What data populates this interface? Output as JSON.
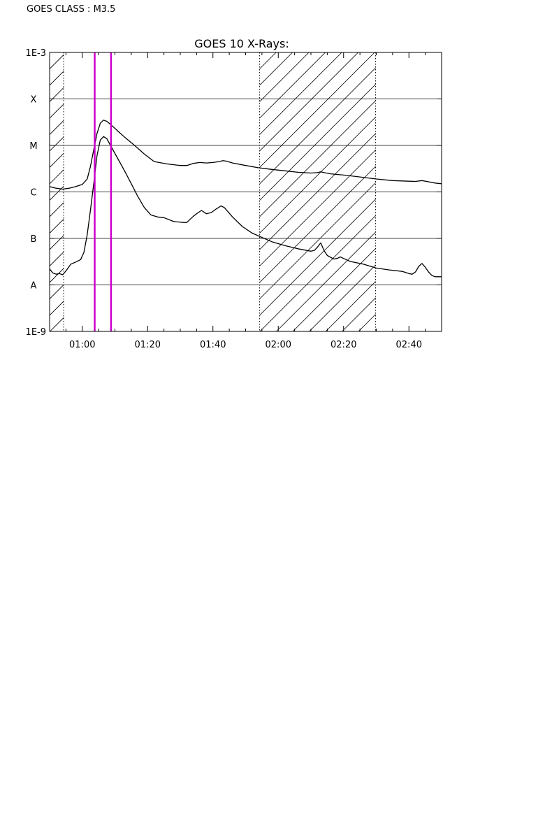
{
  "header": {
    "goes_class": "GOES CLASS : M3.5"
  },
  "chart_data": {
    "type": "line",
    "title": "GOES 10 X-Rays:",
    "xlabel": "",
    "ylabel": "",
    "x_unit": "minutes after 00:00 UT",
    "xlim": [
      50,
      170
    ],
    "y_scale": "log",
    "ylim": [
      1e-09,
      0.001
    ],
    "y_ticks": [
      {
        "value": 0.001,
        "label": "1E-3"
      },
      {
        "value": 0.0001,
        "label": "X"
      },
      {
        "value": 1e-05,
        "label": "M"
      },
      {
        "value": 1e-06,
        "label": "C"
      },
      {
        "value": 1e-07,
        "label": "B"
      },
      {
        "value": 1e-08,
        "label": "A"
      },
      {
        "value": 1e-09,
        "label": "1E-9"
      }
    ],
    "x_ticks": [
      {
        "value": 60,
        "label": "01:00"
      },
      {
        "value": 80,
        "label": "01:20"
      },
      {
        "value": 100,
        "label": "01:40"
      },
      {
        "value": 120,
        "label": "02:00"
      },
      {
        "value": 140,
        "label": "02:20"
      },
      {
        "value": 160,
        "label": "02:40"
      }
    ],
    "grid": "horizontal",
    "shaded_intervals": [
      {
        "start": 50,
        "end": 54.3
      },
      {
        "start": 114.3,
        "end": 149.8
      }
    ],
    "marker_lines": {
      "color": "#cc00cc",
      "x": [
        63.8,
        68.8
      ]
    },
    "series": [
      {
        "points": [
          [
            50,
            1.3e-06
          ],
          [
            52,
            1.2e-06
          ],
          [
            54,
            1.15e-06
          ],
          [
            56,
            1.2e-06
          ],
          [
            58,
            1.3e-06
          ],
          [
            60,
            1.45e-06
          ],
          [
            61.5,
            1.9e-06
          ],
          [
            62.5,
            3.5e-06
          ],
          [
            63.5,
            8e-06
          ],
          [
            64.5,
            1.8e-05
          ],
          [
            65.5,
            3e-05
          ],
          [
            66.5,
            3.5e-05
          ],
          [
            67.5,
            3.3e-05
          ],
          [
            69,
            2.7e-05
          ],
          [
            71,
            2e-05
          ],
          [
            73,
            1.5e-05
          ],
          [
            76,
            1e-05
          ],
          [
            79,
            6.5e-06
          ],
          [
            82,
            4.5e-06
          ],
          [
            86,
            4e-06
          ],
          [
            90,
            3.7e-06
          ],
          [
            92,
            3.7e-06
          ],
          [
            94,
            4.1e-06
          ],
          [
            96,
            4.3e-06
          ],
          [
            98,
            4.2e-06
          ],
          [
            100,
            4.3e-06
          ],
          [
            102,
            4.5e-06
          ],
          [
            103,
            4.7e-06
          ],
          [
            104,
            4.6e-06
          ],
          [
            106,
            4.2e-06
          ],
          [
            110,
            3.7e-06
          ],
          [
            114,
            3.3e-06
          ],
          [
            118,
            3.05e-06
          ],
          [
            122,
            2.85e-06
          ],
          [
            126,
            2.65e-06
          ],
          [
            130,
            2.55e-06
          ],
          [
            132,
            2.6e-06
          ],
          [
            133,
            2.7e-06
          ],
          [
            134,
            2.6e-06
          ],
          [
            136,
            2.45e-06
          ],
          [
            140,
            2.3e-06
          ],
          [
            145,
            2.1e-06
          ],
          [
            150,
            1.9e-06
          ],
          [
            155,
            1.75e-06
          ],
          [
            160,
            1.7e-06
          ],
          [
            162,
            1.68e-06
          ],
          [
            164,
            1.75e-06
          ],
          [
            166,
            1.65e-06
          ],
          [
            168,
            1.55e-06
          ],
          [
            170,
            1.5e-06
          ]
        ]
      },
      {
        "points": [
          [
            50,
            2.2e-08
          ],
          [
            51,
            1.8e-08
          ],
          [
            52,
            1.7e-08
          ],
          [
            53,
            1.75e-08
          ],
          [
            54,
            1.65e-08
          ],
          [
            55,
            2e-08
          ],
          [
            56.5,
            2.8e-08
          ],
          [
            58,
            3.1e-08
          ],
          [
            59.5,
            3.5e-08
          ],
          [
            60.5,
            5e-08
          ],
          [
            61.5,
            1.2e-07
          ],
          [
            62.5,
            4e-07
          ],
          [
            63.5,
            1.5e-06
          ],
          [
            64.5,
            6e-06
          ],
          [
            65.5,
            1.3e-05
          ],
          [
            66.5,
            1.55e-05
          ],
          [
            67.5,
            1.4e-05
          ],
          [
            69,
            9e-06
          ],
          [
            71,
            5e-06
          ],
          [
            73,
            2.8e-06
          ],
          [
            75,
            1.5e-06
          ],
          [
            77,
            8e-07
          ],
          [
            79,
            4.6e-07
          ],
          [
            81,
            3.2e-07
          ],
          [
            83,
            2.9e-07
          ],
          [
            85,
            2.8e-07
          ],
          [
            88,
            2.3e-07
          ],
          [
            91,
            2.2e-07
          ],
          [
            92,
            2.2e-07
          ],
          [
            94,
            3e-07
          ],
          [
            95.5,
            3.6e-07
          ],
          [
            96.5,
            4e-07
          ],
          [
            98,
            3.4e-07
          ],
          [
            99.5,
            3.6e-07
          ],
          [
            101,
            4.3e-07
          ],
          [
            102.5,
            5e-07
          ],
          [
            103.5,
            4.6e-07
          ],
          [
            106,
            2.9e-07
          ],
          [
            109,
            1.8e-07
          ],
          [
            112,
            1.3e-07
          ],
          [
            115,
            1.05e-07
          ],
          [
            118,
            8.5e-08
          ],
          [
            122,
            7e-08
          ],
          [
            126,
            6e-08
          ],
          [
            130,
            5.3e-08
          ],
          [
            131,
            5.5e-08
          ],
          [
            132,
            6.5e-08
          ],
          [
            133,
            8e-08
          ],
          [
            134,
            5.5e-08
          ],
          [
            135,
            4.3e-08
          ],
          [
            137,
            3.6e-08
          ],
          [
            138,
            3.7e-08
          ],
          [
            139,
            4e-08
          ],
          [
            140,
            3.7e-08
          ],
          [
            142,
            3.2e-08
          ],
          [
            146,
            2.8e-08
          ],
          [
            150,
            2.3e-08
          ],
          [
            154,
            2.1e-08
          ],
          [
            158,
            1.95e-08
          ],
          [
            160,
            1.75e-08
          ],
          [
            161,
            1.7e-08
          ],
          [
            162,
            1.9e-08
          ],
          [
            163,
            2.5e-08
          ],
          [
            164,
            2.9e-08
          ],
          [
            165,
            2.4e-08
          ],
          [
            166,
            1.9e-08
          ],
          [
            167,
            1.6e-08
          ],
          [
            168,
            1.5e-08
          ],
          [
            170,
            1.5e-08
          ]
        ]
      }
    ]
  }
}
